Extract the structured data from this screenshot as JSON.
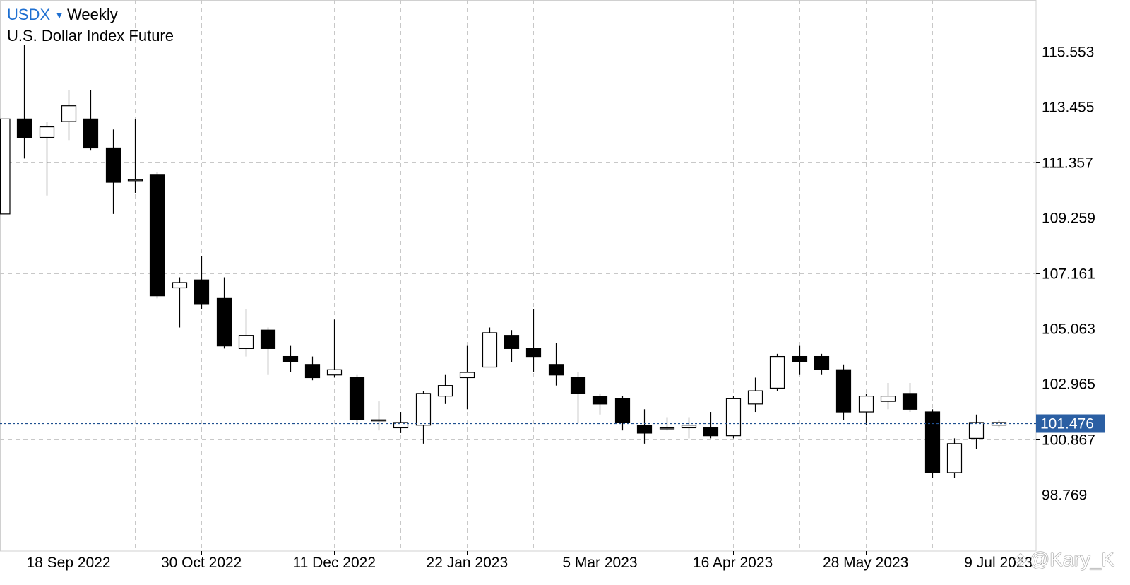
{
  "header": {
    "symbol": "USDX",
    "dropdown_icon": "triangle-down-icon",
    "period": "Weekly",
    "instrument_name": "U.S. Dollar Index Future"
  },
  "watermark": {
    "icon": "zhihu-logo-icon",
    "text": "@Kary_K"
  },
  "colors": {
    "up_body": "#ffffff",
    "down_body": "#000000",
    "wick": "#000000",
    "grid": "#c8c8c8",
    "last_price_line": "#1f4f8f",
    "last_price_badge": "#2b5fa3"
  },
  "chart_data": {
    "type": "candlestick",
    "ylim": [
      97.6,
      117.5
    ],
    "grid": true,
    "y_axis_side": "right",
    "y_ticks": [
      "115.553",
      "113.455",
      "111.357",
      "109.259",
      "107.161",
      "105.063",
      "102.965",
      "100.867",
      "98.769"
    ],
    "x_tick_labels": [
      "18 Sep 2022",
      "30 Oct 2022",
      "11 Dec 2022",
      "22 Jan 2023",
      "5 Mar 2023",
      "16 Apr 2023",
      "28 May 2023",
      "9 Jul 2023"
    ],
    "x_tick_candle_index": [
      3,
      9,
      15,
      21,
      27,
      33,
      39,
      45
    ],
    "last_price": "101.476",
    "candles": [
      {
        "week": "4 Sep 2022",
        "open": 109.4,
        "high": 113.0,
        "low": 109.4,
        "close": 113.0
      },
      {
        "week": "11 Sep 2022",
        "open": 113.0,
        "high": 115.8,
        "low": 111.5,
        "close": 112.3
      },
      {
        "week": "18 Sep 2022",
        "open": 112.3,
        "high": 112.9,
        "low": 110.1,
        "close": 112.7
      },
      {
        "week": "25 Sep 2022",
        "open": 112.9,
        "high": 114.1,
        "low": 112.2,
        "close": 113.5
      },
      {
        "week": "2 Oct 2022",
        "open": 113.0,
        "high": 114.1,
        "low": 111.8,
        "close": 111.9
      },
      {
        "week": "9 Oct 2022",
        "open": 111.9,
        "high": 112.6,
        "low": 109.4,
        "close": 110.6
      },
      {
        "week": "16 Oct 2022",
        "open": 110.7,
        "high": 113.0,
        "low": 110.2,
        "close": 110.7
      },
      {
        "week": "23 Oct 2022",
        "open": 110.9,
        "high": 111.0,
        "low": 106.2,
        "close": 106.3
      },
      {
        "week": "30 Oct 2022",
        "open": 106.6,
        "high": 107.0,
        "low": 105.1,
        "close": 106.8
      },
      {
        "week": "6 Nov 2022",
        "open": 106.9,
        "high": 107.8,
        "low": 105.8,
        "close": 106.0
      },
      {
        "week": "13 Nov 2022",
        "open": 106.2,
        "high": 107.0,
        "low": 104.3,
        "close": 104.4
      },
      {
        "week": "20 Nov 2022",
        "open": 104.3,
        "high": 105.8,
        "low": 104.0,
        "close": 104.8
      },
      {
        "week": "27 Nov 2022",
        "open": 105.0,
        "high": 105.1,
        "low": 103.3,
        "close": 104.3
      },
      {
        "week": "4 Dec 2022",
        "open": 104.0,
        "high": 104.4,
        "low": 103.4,
        "close": 103.8
      },
      {
        "week": "11 Dec 2022",
        "open": 103.7,
        "high": 104.0,
        "low": 103.1,
        "close": 103.2
      },
      {
        "week": "18 Dec 2022",
        "open": 103.3,
        "high": 105.4,
        "low": 103.2,
        "close": 103.5
      },
      {
        "week": "25 Dec 2022",
        "open": 103.2,
        "high": 103.3,
        "low": 101.4,
        "close": 101.6
      },
      {
        "week": "1 Jan 2023",
        "open": 101.6,
        "high": 102.3,
        "low": 101.2,
        "close": 101.6
      },
      {
        "week": "8 Jan 2023",
        "open": 101.3,
        "high": 101.9,
        "low": 101.1,
        "close": 101.5
      },
      {
        "week": "15 Jan 2023",
        "open": 101.4,
        "high": 102.7,
        "low": 100.7,
        "close": 102.6
      },
      {
        "week": "22 Jan 2023",
        "open": 102.5,
        "high": 103.3,
        "low": 102.2,
        "close": 102.9
      },
      {
        "week": "29 Jan 2023",
        "open": 103.2,
        "high": 104.4,
        "low": 102.0,
        "close": 103.4
      },
      {
        "week": "5 Feb 2023",
        "open": 103.6,
        "high": 105.1,
        "low": 103.6,
        "close": 104.9
      },
      {
        "week": "12 Feb 2023",
        "open": 104.8,
        "high": 105.0,
        "low": 103.8,
        "close": 104.3
      },
      {
        "week": "19 Feb 2023",
        "open": 104.3,
        "high": 105.8,
        "low": 103.4,
        "close": 104.0
      },
      {
        "week": "26 Feb 2023",
        "open": 103.7,
        "high": 104.5,
        "low": 102.9,
        "close": 103.3
      },
      {
        "week": "5 Mar 2023",
        "open": 103.2,
        "high": 103.4,
        "low": 101.5,
        "close": 102.6
      },
      {
        "week": "12 Mar 2023",
        "open": 102.5,
        "high": 102.6,
        "low": 101.8,
        "close": 102.2
      },
      {
        "week": "19 Mar 2023",
        "open": 102.4,
        "high": 102.5,
        "low": 101.2,
        "close": 101.5
      },
      {
        "week": "26 Mar 2023",
        "open": 101.4,
        "high": 102.0,
        "low": 100.7,
        "close": 101.1
      },
      {
        "week": "2 Apr 2023",
        "open": 101.3,
        "high": 101.7,
        "low": 101.2,
        "close": 101.3
      },
      {
        "week": "9 Apr 2023",
        "open": 101.3,
        "high": 101.7,
        "low": 100.9,
        "close": 101.4
      },
      {
        "week": "16 Apr 2023",
        "open": 101.3,
        "high": 101.9,
        "low": 100.9,
        "close": 101.0
      },
      {
        "week": "23 Apr 2023",
        "open": 101.0,
        "high": 102.5,
        "low": 100.9,
        "close": 102.4
      },
      {
        "week": "30 Apr 2023",
        "open": 102.2,
        "high": 103.2,
        "low": 101.9,
        "close": 102.7
      },
      {
        "week": "7 May 2023",
        "open": 102.8,
        "high": 104.1,
        "low": 102.7,
        "close": 104.0
      },
      {
        "week": "14 May 2023",
        "open": 104.0,
        "high": 104.4,
        "low": 103.3,
        "close": 103.8
      },
      {
        "week": "21 May 2023",
        "open": 104.0,
        "high": 104.1,
        "low": 103.3,
        "close": 103.5
      },
      {
        "week": "28 May 2023",
        "open": 103.5,
        "high": 103.7,
        "low": 101.6,
        "close": 101.9
      },
      {
        "week": "4 Jun 2023",
        "open": 101.9,
        "high": 102.6,
        "low": 101.4,
        "close": 102.5
      },
      {
        "week": "11 Jun 2023",
        "open": 102.3,
        "high": 103.0,
        "low": 102.0,
        "close": 102.5
      },
      {
        "week": "18 Jun 2023",
        "open": 102.6,
        "high": 103.0,
        "low": 101.9,
        "close": 102.0
      },
      {
        "week": "25 Jun 2023",
        "open": 101.9,
        "high": 102.0,
        "low": 99.4,
        "close": 99.6
      },
      {
        "week": "2 Jul 2023",
        "open": 99.6,
        "high": 100.9,
        "low": 99.4,
        "close": 100.7
      },
      {
        "week": "9 Jul 2023",
        "open": 100.9,
        "high": 101.8,
        "low": 100.5,
        "close": 101.5
      },
      {
        "week": "16 Jul 2023",
        "open": 101.4,
        "high": 101.6,
        "low": 101.3,
        "close": 101.5
      }
    ]
  }
}
